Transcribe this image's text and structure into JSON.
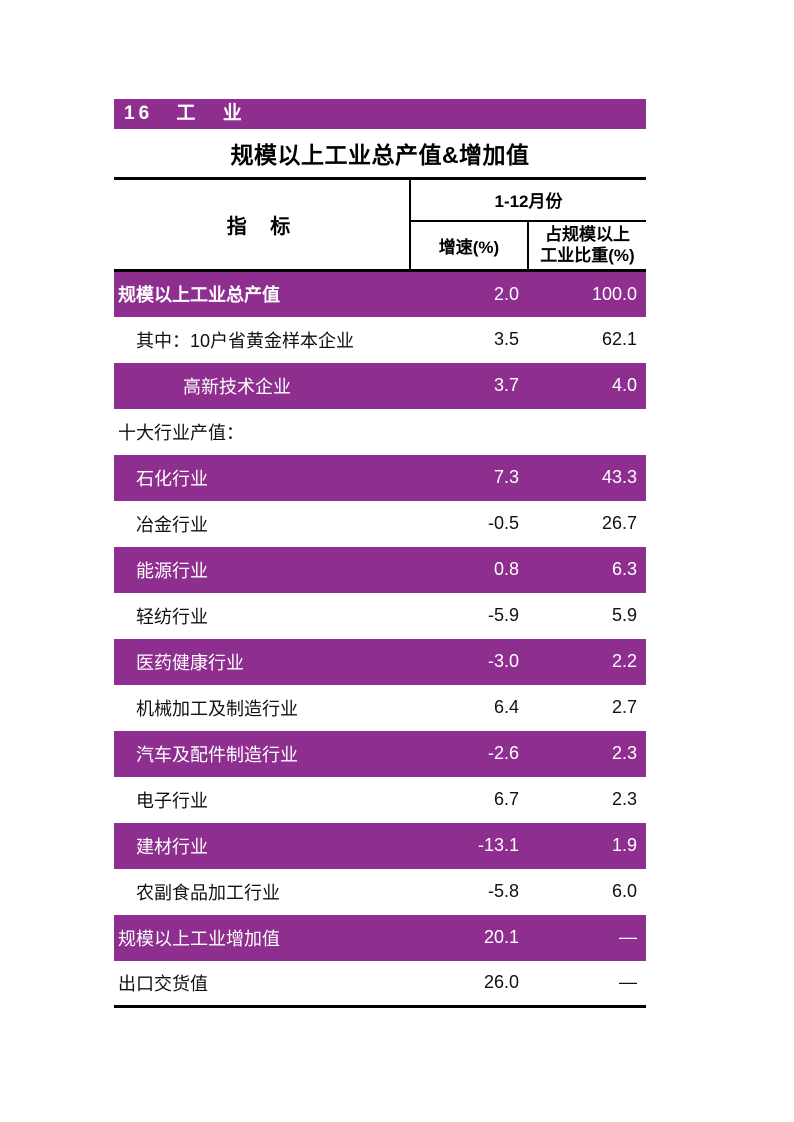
{
  "section": {
    "label": "16 工 业",
    "band_color": "#8e2f8f",
    "text_color": "#ffffff"
  },
  "table": {
    "title": "规模以上工业总产值&增加值",
    "accent_color": "#8e2f8f",
    "header": {
      "indicator": "指 标",
      "period": "1-12月份",
      "growth": "增速(%)",
      "share_line1": "占规模以上",
      "share_line2": "工业比重(%)"
    },
    "rows": [
      {
        "label": "规模以上工业总产值",
        "growth": "2.0",
        "share": "100.0",
        "highlight": true,
        "bold": true,
        "indent": 0
      },
      {
        "label": "其中：10户省黄金样本企业",
        "growth": "3.5",
        "share": "62.1",
        "highlight": false,
        "bold": false,
        "indent": 1
      },
      {
        "label": "高新技术企业",
        "growth": "3.7",
        "share": "4.0",
        "highlight": true,
        "bold": false,
        "indent": 2
      },
      {
        "label": "十大行业产值：",
        "growth": "",
        "share": "",
        "highlight": false,
        "bold": false,
        "indent": 0
      },
      {
        "label": "石化行业",
        "growth": "7.3",
        "share": "43.3",
        "highlight": true,
        "bold": false,
        "indent": 1
      },
      {
        "label": "冶金行业",
        "growth": "-0.5",
        "share": "26.7",
        "highlight": false,
        "bold": false,
        "indent": 1
      },
      {
        "label": "能源行业",
        "growth": "0.8",
        "share": "6.3",
        "highlight": true,
        "bold": false,
        "indent": 1
      },
      {
        "label": "轻纺行业",
        "growth": "-5.9",
        "share": "5.9",
        "highlight": false,
        "bold": false,
        "indent": 1
      },
      {
        "label": "医药健康行业",
        "growth": "-3.0",
        "share": "2.2",
        "highlight": true,
        "bold": false,
        "indent": 1
      },
      {
        "label": "机械加工及制造行业",
        "growth": "6.4",
        "share": "2.7",
        "highlight": false,
        "bold": false,
        "indent": 1
      },
      {
        "label": "汽车及配件制造行业",
        "growth": "-2.6",
        "share": "2.3",
        "highlight": true,
        "bold": false,
        "indent": 1
      },
      {
        "label": "电子行业",
        "growth": "6.7",
        "share": "2.3",
        "highlight": false,
        "bold": false,
        "indent": 1
      },
      {
        "label": "建材行业",
        "growth": "-13.1",
        "share": "1.9",
        "highlight": true,
        "bold": false,
        "indent": 1
      },
      {
        "label": "农副食品加工行业",
        "growth": "-5.8",
        "share": "6.0",
        "highlight": false,
        "bold": false,
        "indent": 1
      },
      {
        "label": "规模以上工业增加值",
        "growth": "20.1",
        "share": "—",
        "highlight": true,
        "bold": false,
        "indent": 0
      },
      {
        "label": "出口交货值",
        "growth": "26.0",
        "share": "—",
        "highlight": false,
        "bold": false,
        "indent": 0
      }
    ]
  }
}
